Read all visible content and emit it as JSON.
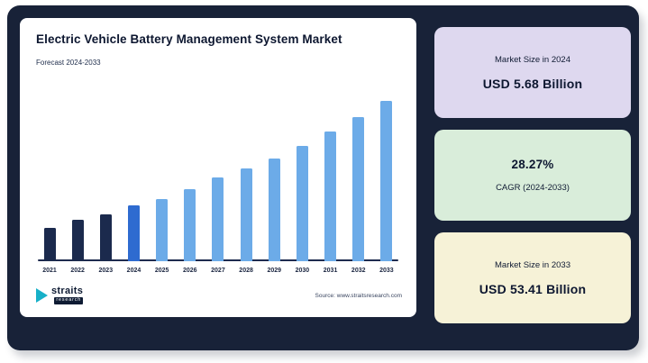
{
  "chart_card": {
    "title": "Electric Vehicle Battery Management System Market",
    "subtitle": "Forecast 2024-2033",
    "source": "Source: www.straitsresearch.com",
    "logo": {
      "title": "straits",
      "subtitle": "research"
    }
  },
  "stat_cards": [
    {
      "label": "Market Size in 2024",
      "value": "USD 5.68 Billion",
      "color": "#ded8ef"
    },
    {
      "value": "28.27%",
      "label": "CAGR (2024-2033)",
      "color": "#d9edda"
    },
    {
      "label": "Market Size in 2033",
      "value": "USD 53.41 Billion",
      "color": "#f6f2d7"
    }
  ],
  "chart_data": {
    "type": "bar",
    "title": "Electric Vehicle Battery Management System Market",
    "subtitle": "Forecast 2024-2033",
    "categories": [
      "2021",
      "2022",
      "2023",
      "2024",
      "2025",
      "2026",
      "2027",
      "2028",
      "2029",
      "2030",
      "2031",
      "2032",
      "2033"
    ],
    "values_relative_height_pct": [
      21,
      26,
      29,
      35,
      39,
      45,
      52,
      58,
      64,
      72,
      81,
      90,
      100
    ],
    "bar_colors": [
      "#1b2a4d",
      "#1b2a4d",
      "#1b2a4d",
      "#2e6bd0",
      "#6cabe8",
      "#6cabe8",
      "#6cabe8",
      "#6cabe8",
      "#6cabe8",
      "#6cabe8",
      "#6cabe8",
      "#6cabe8",
      "#6cabe8"
    ],
    "known_values_usd_billion": {
      "2024": 5.68,
      "2033": 53.41
    },
    "cagr_pct_2024_2033": 28.27,
    "xlabel": "",
    "ylabel": "",
    "grid": false,
    "legend": "none",
    "source": "Source: www.straitsresearch.com",
    "colors_legend": {
      "historical": "#1b2a4d",
      "base_year_2024": "#2e6bd0",
      "forecast": "#6cabe8"
    }
  },
  "theme": {
    "panel_bg": "#182238",
    "card_bg": "#ffffff",
    "accent_teal": "#17b0c8",
    "text_navy": "#0d1730"
  }
}
